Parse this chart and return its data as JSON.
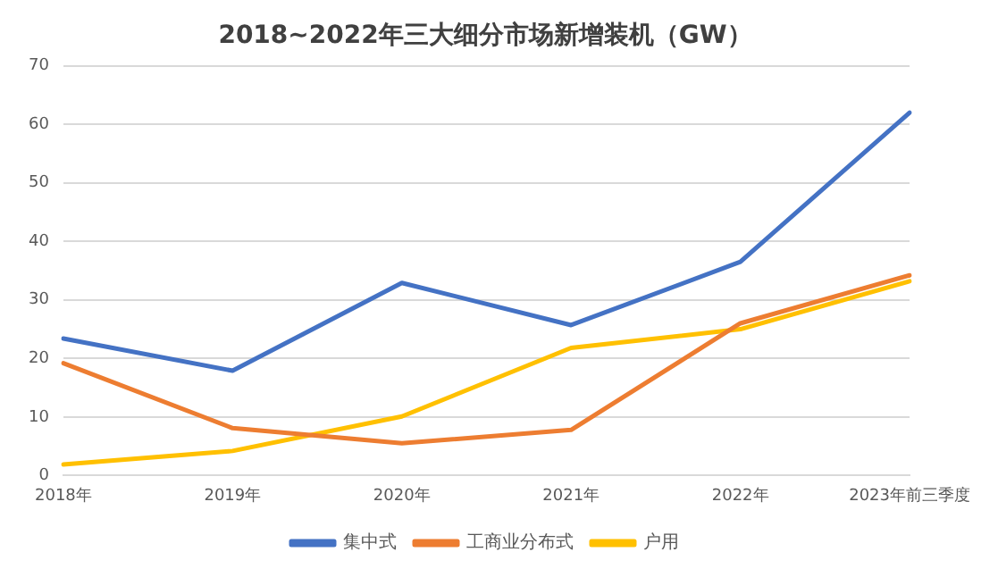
{
  "chart_data": {
    "type": "line",
    "title": "2018~2022年三大细分市场新增装机（GW）",
    "categories": [
      "2018年",
      "2019年",
      "2020年",
      "2021年",
      "2022年",
      "2023年前三季度"
    ],
    "series": [
      {
        "name": "集中式",
        "color": "#4472c4",
        "values": [
          23.4,
          17.9,
          32.9,
          25.7,
          36.5,
          62
        ]
      },
      {
        "name": "工商业分布式",
        "color": "#ed7d31",
        "values": [
          19.2,
          8.1,
          5.5,
          7.8,
          26,
          34.2
        ]
      },
      {
        "name": "户用",
        "color": "#ffc000",
        "values": [
          1.9,
          4.2,
          10.1,
          21.8,
          25,
          33.2
        ]
      }
    ],
    "ylim": [
      0,
      70
    ],
    "yticks": [
      0,
      10,
      20,
      30,
      40,
      50,
      60,
      70
    ],
    "grid": "y",
    "legend": "bottom",
    "marker": "none",
    "line_style": "solid"
  }
}
